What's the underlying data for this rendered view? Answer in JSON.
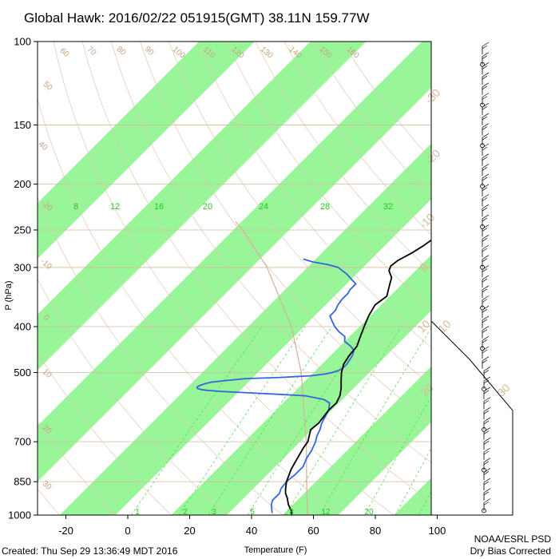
{
  "title": "Global Hawk: 2016/02/22 051915(GMT) 38.11N 159.77W",
  "footer": {
    "created": "Created: Thu Sep 29 13:36:49 MDT 2016",
    "org": "NOAA/ESRL PSD",
    "note": "Dry Bias Corrected"
  },
  "colors": {
    "band": "#98f598",
    "isotherm": "#d8b898",
    "dry_adiabat": "#e0c8b4",
    "mixing_ratio": "#44dd44",
    "temperature": "#000000",
    "dewpoint": "#3366dd",
    "parcel": "#d8b098"
  },
  "chart_data": {
    "type": "skew-t",
    "xlabel": "Temperature (F)",
    "ylabel": "P (hPa)",
    "x_ticks": [
      -20,
      0,
      20,
      40,
      60,
      80,
      100
    ],
    "x_tick_labels": [
      "-20",
      "0",
      "20",
      "40",
      "60",
      "80",
      "100"
    ],
    "y_ticks": [
      100,
      150,
      200,
      250,
      300,
      400,
      500,
      700,
      850,
      1000
    ],
    "y_tick_labels": [
      "100",
      "150",
      "200",
      "250",
      "300",
      "400",
      "500",
      "700",
      "850",
      "1000"
    ],
    "isotherm_labels_F": [
      -40,
      -30,
      -20,
      -10,
      0,
      10,
      20,
      30
    ],
    "isotherm_label_text": [
      "-40",
      "-30",
      "-20",
      "-10",
      "0",
      "10",
      "20",
      "30"
    ],
    "dry_adiabat_labels": [
      "-20",
      "-10",
      "0",
      "10",
      "20",
      "30",
      "40",
      "50",
      "60",
      "70",
      "80",
      "90",
      "100",
      "110",
      "120",
      "130",
      "140",
      "150",
      "160"
    ],
    "mixing_ratio_labels_top": [
      "8",
      "12",
      "16",
      "20",
      "24",
      "28",
      "32"
    ],
    "mixing_ratio_labels_bottom": [
      "1",
      "2",
      "3",
      "5",
      "8",
      "12",
      "20"
    ],
    "temperature_profile": {
      "name": "Temperature",
      "p": [
        1000,
        980,
        950,
        920,
        900,
        880,
        850,
        820,
        800,
        760,
        720,
        700,
        680,
        660,
        640,
        620,
        600,
        580,
        560,
        540,
        520,
        500,
        480,
        460,
        440,
        420,
        400,
        380,
        360,
        345,
        335,
        325,
        315,
        305,
        298,
        290,
        280,
        270,
        260,
        250,
        240,
        230,
        220,
        210,
        200,
        190,
        180,
        170,
        160,
        150,
        140,
        130,
        125,
        120,
        115,
        110,
        105,
        100
      ],
      "t": [
        53,
        51.5,
        48.5,
        46,
        44,
        42.5,
        40.5,
        39,
        38,
        36.5,
        35,
        34.5,
        33,
        31.5,
        32,
        31.5,
        31,
        31.2,
        30,
        28,
        25.5,
        23,
        21,
        20,
        19.5,
        17.5,
        15.5,
        13.5,
        12,
        13,
        11.5,
        10,
        8.5,
        5.5,
        4.5,
        5,
        7,
        8.5,
        9.5,
        10,
        11,
        12,
        13.5,
        15,
        17,
        18.5,
        20,
        21.5,
        23,
        25,
        27.5,
        29.5,
        32,
        35,
        36,
        37,
        37.5,
        38
      ]
    },
    "dewpoint_profile": {
      "name": "Dew point",
      "p": [
        990,
        970,
        950,
        930,
        900,
        880,
        850,
        820,
        790,
        760,
        730,
        700,
        680,
        660,
        640,
        620,
        600,
        580,
        570,
        560,
        556,
        552,
        548,
        545,
        543,
        540,
        536,
        532,
        528,
        524,
        520,
        515,
        512,
        508,
        504,
        500,
        495,
        490,
        480,
        470,
        460,
        450,
        440,
        430,
        420,
        410,
        400,
        390,
        380,
        370,
        360,
        350,
        340,
        335,
        330,
        325,
        320,
        315,
        310,
        305,
        300,
        296,
        292,
        288
      ],
      "t": [
        46,
        44.5,
        43,
        42,
        42,
        41,
        40.5,
        41,
        41,
        39.5,
        38.5,
        37,
        35.5,
        34.5,
        33,
        32,
        31,
        29,
        26,
        19,
        10,
        0,
        -10,
        -15,
        -17,
        -18.5,
        -19,
        -18.5,
        -17.5,
        -16,
        -12,
        -6,
        5,
        14,
        18,
        20,
        21.5,
        22,
        22,
        21.5,
        21,
        20,
        17.5,
        14,
        12.5,
        9,
        6,
        3.5,
        1,
        1,
        0,
        -0.5,
        -0.5,
        -1,
        -1,
        -1,
        -3,
        -5,
        -7,
        -9.5,
        -12,
        -16,
        -22,
        -26
      ]
    }
  }
}
